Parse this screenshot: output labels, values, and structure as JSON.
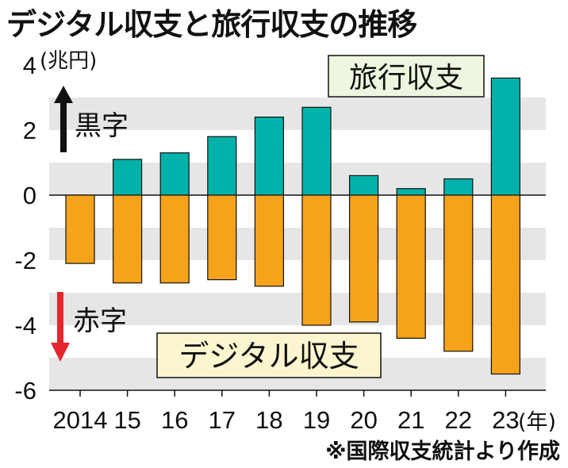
{
  "title": "デジタル収支と旅行収支の推移",
  "unit_label": "(兆円)",
  "x_unit_label": "(年)",
  "note": "※国際収支統計より作成",
  "colors": {
    "travel": "#00b2a9",
    "digital": "#f5a31a",
    "stripe": "#e6e6e6",
    "up_arrow": "#111111",
    "down_arrow": "#e6262e",
    "travel_label_bg": "#eef6df",
    "digital_label_bg": "#fbf6cf"
  },
  "chart_data": {
    "type": "bar",
    "categories": [
      "2014",
      "15",
      "16",
      "17",
      "18",
      "19",
      "20",
      "21",
      "22",
      "23"
    ],
    "series": [
      {
        "name": "旅行収支",
        "values": [
          null,
          1.1,
          1.3,
          1.8,
          2.4,
          2.7,
          0.6,
          0.2,
          0.5,
          3.6
        ]
      },
      {
        "name": "デジタル収支",
        "values": [
          -2.1,
          -2.7,
          -2.7,
          -2.6,
          -2.8,
          -4.0,
          -3.9,
          -4.4,
          -4.8,
          -5.5
        ]
      }
    ],
    "yticks": [
      "4",
      "2",
      "0",
      "-2",
      "-4",
      "-6"
    ],
    "ylim": [
      -6,
      4
    ],
    "annotations": {
      "surplus": "黒字",
      "deficit": "赤字"
    },
    "grid": "horizontal bands"
  }
}
